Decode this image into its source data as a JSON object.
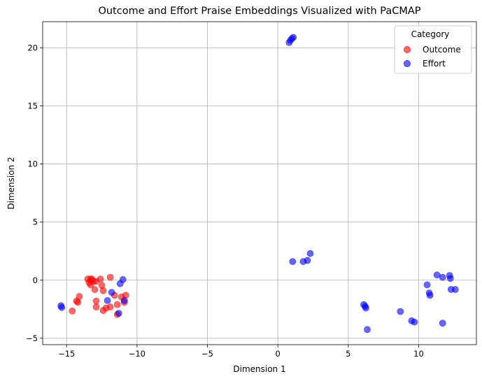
{
  "chart_data": {
    "type": "scatter",
    "title": "Outcome and Effort Praise Embeddings Visualized with PaCMAP",
    "xlabel": "Dimension 1",
    "ylabel": "Dimension 2",
    "xlim": [
      -16.7,
      14.1
    ],
    "ylim": [
      -5.55,
      22.25
    ],
    "xticks": [
      -15,
      -10,
      -5,
      0,
      5,
      10
    ],
    "yticks": [
      -5,
      0,
      5,
      10,
      15,
      20
    ],
    "grid": true,
    "legend": {
      "title": "Category",
      "placement": "upper-right"
    },
    "series": [
      {
        "name": "Outcome",
        "color": "#ff0000",
        "alpha": 0.6,
        "points": [
          [
            -14.6,
            -2.65
          ],
          [
            -14.3,
            -1.8
          ],
          [
            -14.2,
            -1.9
          ],
          [
            -14.1,
            -1.4
          ],
          [
            -13.5,
            0.1
          ],
          [
            -13.4,
            -0.2
          ],
          [
            -13.3,
            -0.4
          ],
          [
            -13.3,
            0.1
          ],
          [
            -13.2,
            0.1
          ],
          [
            -13.1,
            -0.1
          ],
          [
            -13.0,
            -0.8
          ],
          [
            -12.9,
            -0.1
          ],
          [
            -12.9,
            -1.8
          ],
          [
            -12.9,
            -2.3
          ],
          [
            -12.6,
            0.1
          ],
          [
            -12.5,
            -0.45
          ],
          [
            -12.4,
            -0.9
          ],
          [
            -12.4,
            -2.6
          ],
          [
            -12.2,
            -2.4
          ],
          [
            -11.9,
            0.25
          ],
          [
            -11.9,
            -2.3
          ],
          [
            -11.6,
            -1.3
          ],
          [
            -11.4,
            -2.1
          ],
          [
            -11.4,
            -2.95
          ],
          [
            -11.1,
            -1.45
          ],
          [
            -10.9,
            -1.9
          ],
          [
            -10.8,
            -1.3
          ]
        ]
      },
      {
        "name": "Effort",
        "color": "#0000ff",
        "alpha": 0.6,
        "points": [
          [
            -15.4,
            -2.2
          ],
          [
            -15.35,
            -2.35
          ],
          [
            -12.1,
            -1.75
          ],
          [
            -11.8,
            -1.05
          ],
          [
            -11.3,
            -2.85
          ],
          [
            -11.2,
            -0.3
          ],
          [
            -11.0,
            0.05
          ],
          [
            -10.9,
            -1.75
          ],
          [
            0.8,
            20.45
          ],
          [
            0.9,
            20.65
          ],
          [
            1.0,
            20.8
          ],
          [
            1.1,
            20.9
          ],
          [
            1.05,
            1.6
          ],
          [
            1.8,
            1.6
          ],
          [
            2.1,
            1.7
          ],
          [
            2.3,
            2.3
          ],
          [
            6.1,
            -2.1
          ],
          [
            6.2,
            -2.25
          ],
          [
            6.25,
            -2.4
          ],
          [
            6.35,
            -4.25
          ],
          [
            8.7,
            -2.7
          ],
          [
            9.5,
            -3.5
          ],
          [
            9.7,
            -3.6
          ],
          [
            10.6,
            -0.4
          ],
          [
            10.75,
            -1.1
          ],
          [
            10.8,
            -1.3
          ],
          [
            11.3,
            0.45
          ],
          [
            11.7,
            0.25
          ],
          [
            11.7,
            -3.7
          ],
          [
            12.2,
            0.4
          ],
          [
            12.25,
            0.15
          ],
          [
            12.3,
            -0.8
          ],
          [
            12.6,
            -0.8
          ]
        ]
      }
    ]
  }
}
